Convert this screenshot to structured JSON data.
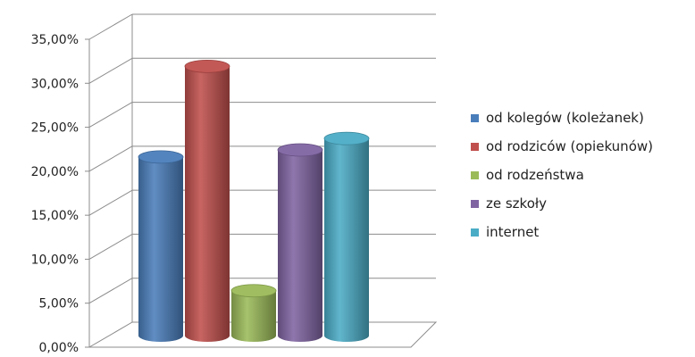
{
  "chart_data": {
    "type": "bar",
    "style": "3d-cylinder",
    "categories": [
      "od kolegów (koleżanek)",
      "od rodziców (opiekunów)",
      "od rodzeństwa",
      "ze szkoły",
      "internet"
    ],
    "values": [
      20.3,
      30.6,
      5.1,
      21.1,
      22.4
    ],
    "colors": [
      "#4a7ebb",
      "#c0504d",
      "#9bbb59",
      "#8064a2",
      "#4bacc6"
    ],
    "ylim": [
      0,
      35
    ],
    "yticks": [
      0,
      5,
      10,
      15,
      20,
      25,
      30,
      35
    ],
    "ytick_labels": [
      "0,00%",
      "5,00%",
      "10,00%",
      "15,00%",
      "20,00%",
      "25,00%",
      "30,00%",
      "35,00%"
    ],
    "grid": true,
    "legend": {
      "placement": "right",
      "items": [
        "od kolegów (koleżanek)",
        "od rodziców (opiekunów)",
        "od rodzeństwa",
        "ze szkoły",
        "internet"
      ]
    }
  }
}
